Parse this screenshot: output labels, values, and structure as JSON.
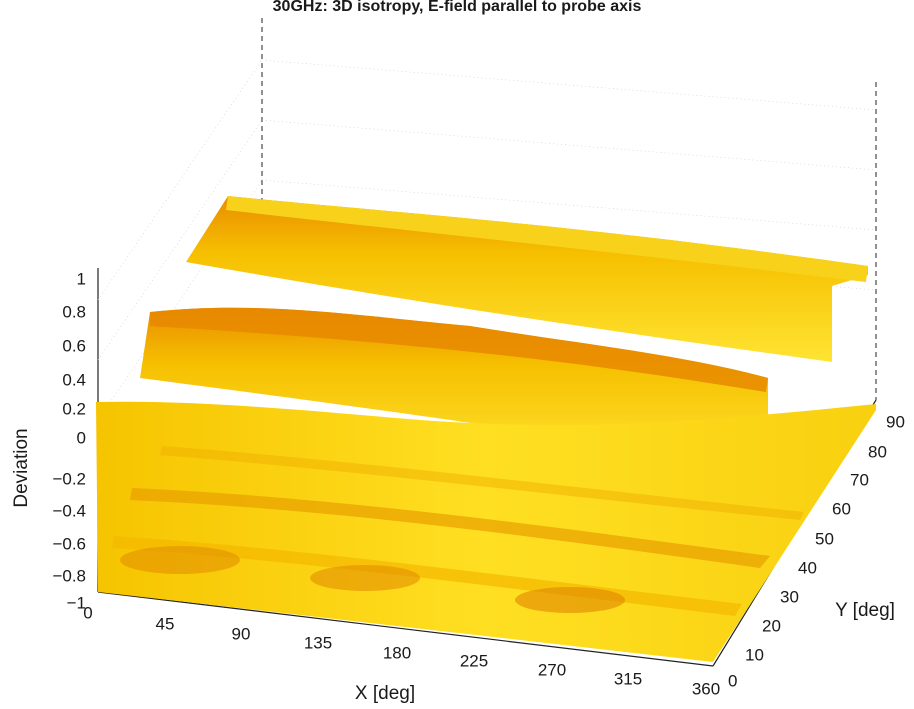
{
  "chart_data": {
    "type": "surface",
    "title": "30GHz: 3D isotropy, E-field parallel to probe axis",
    "xlabel": "X [deg]",
    "ylabel": "Y [deg]",
    "zlabel": "Deviation",
    "xlim": [
      0,
      360
    ],
    "ylim": [
      0,
      90
    ],
    "zlim": [
      -1,
      1
    ],
    "x_ticks": [
      "0",
      "45",
      "90",
      "135",
      "180",
      "225",
      "270",
      "315",
      "360"
    ],
    "y_ticks": [
      "0",
      "10",
      "20",
      "30",
      "40",
      "50",
      "60",
      "70",
      "80",
      "90"
    ],
    "z_ticks": [
      "1",
      "0.8",
      "0.6",
      "0.4",
      "0.2",
      "0",
      "−0.2",
      "−0.4",
      "−0.6",
      "−0.8",
      "−1"
    ],
    "grid": true,
    "colormap": [
      "#ffe633",
      "#f6c200",
      "#e88a00",
      "#c95200"
    ],
    "surface_profile": {
      "y": [
        0,
        5,
        10,
        15,
        20,
        25,
        30,
        35,
        40,
        45,
        50,
        55,
        60,
        65,
        70,
        75,
        80,
        85,
        90
      ],
      "deviation": [
        -0.62,
        -0.6,
        -0.58,
        -0.57,
        -0.55,
        -0.5,
        -0.45,
        -0.35,
        -0.2,
        0.05,
        0.6,
        0.65,
        0.5,
        0.1,
        0.05,
        0.4,
        0.55,
        0.55,
        0.55
      ]
    }
  }
}
